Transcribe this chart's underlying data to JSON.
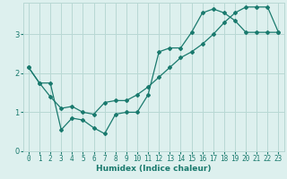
{
  "title": "",
  "xlabel": "Humidex (Indice chaleur)",
  "ylabel": "",
  "bg_color": "#ddf0ee",
  "grid_color": "#b8d8d4",
  "line_color": "#1a7a6e",
  "xlim": [
    -0.5,
    23.5
  ],
  "ylim": [
    0,
    3.8
  ],
  "yticks": [
    0,
    1,
    2,
    3
  ],
  "xticks": [
    0,
    1,
    2,
    3,
    4,
    5,
    6,
    7,
    8,
    9,
    10,
    11,
    12,
    13,
    14,
    15,
    16,
    17,
    18,
    19,
    20,
    21,
    22,
    23
  ],
  "curve1_x": [
    0,
    1,
    2,
    3,
    4,
    5,
    6,
    7,
    8,
    9,
    10,
    11,
    12,
    13,
    14,
    15,
    16,
    17,
    18,
    19,
    20,
    21,
    22,
    23
  ],
  "curve1_y": [
    2.15,
    1.75,
    1.75,
    0.55,
    0.85,
    0.8,
    0.6,
    0.45,
    0.95,
    1.0,
    1.0,
    1.45,
    2.55,
    2.65,
    2.65,
    3.05,
    3.55,
    3.65,
    3.55,
    3.35,
    3.05,
    3.05,
    3.05,
    3.05
  ],
  "curve2_x": [
    0,
    1,
    2,
    3,
    4,
    5,
    6,
    7,
    8,
    9,
    10,
    11,
    12,
    13,
    14,
    15,
    16,
    17,
    18,
    19,
    20,
    21,
    22,
    23
  ],
  "curve2_y": [
    2.15,
    1.75,
    1.4,
    1.1,
    1.15,
    1.0,
    0.95,
    1.25,
    1.3,
    1.3,
    1.45,
    1.65,
    1.9,
    2.15,
    2.4,
    2.55,
    2.75,
    3.0,
    3.3,
    3.55,
    3.7,
    3.7,
    3.7,
    3.05
  ],
  "tick_fontsize": 5.5,
  "xlabel_fontsize": 6.5,
  "marker_size": 2.0,
  "linewidth": 0.9
}
